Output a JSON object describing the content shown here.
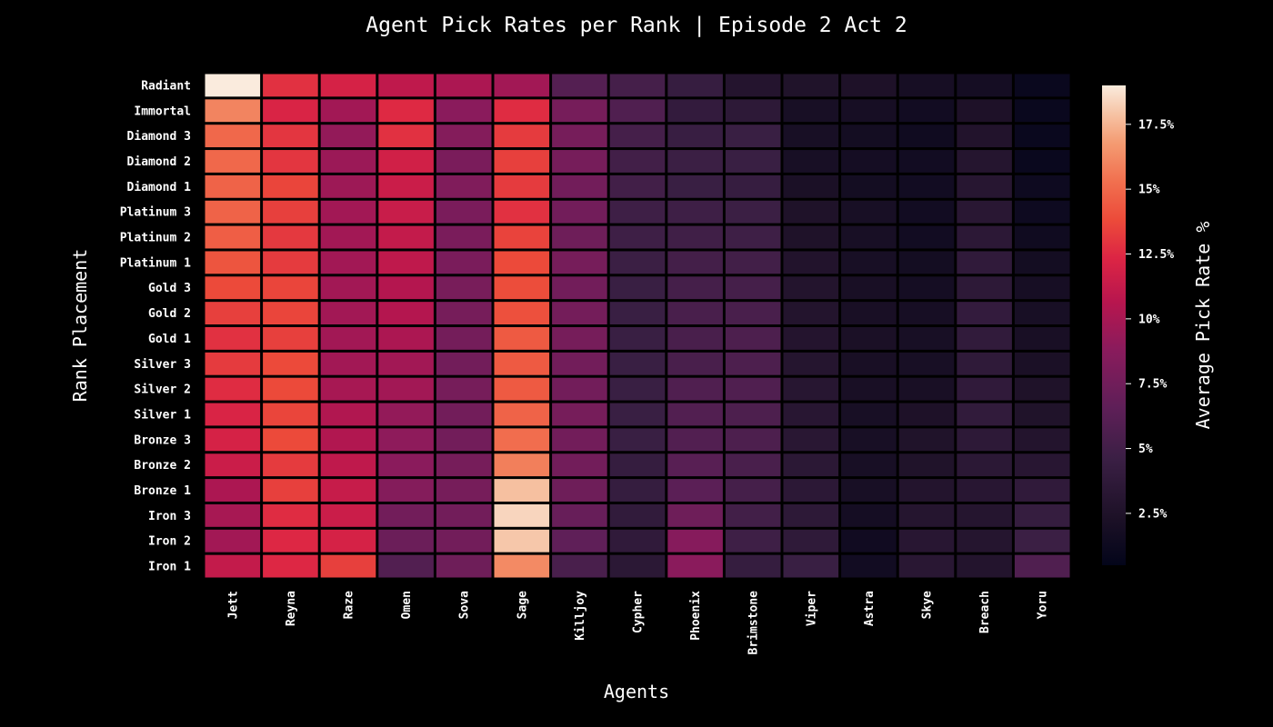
{
  "chart_data": {
    "type": "heatmap",
    "title": "Agent Pick Rates per Rank | Episode 2 Act 2",
    "xlabel": "Agents",
    "ylabel": "Rank Placement",
    "colorbar_label": "Average Pick Rate %",
    "colorbar_range": [
      0.5,
      19
    ],
    "colorbar_ticks": [
      {
        "value": 2.5,
        "label": "2.5%"
      },
      {
        "value": 5,
        "label": "5%"
      },
      {
        "value": 7.5,
        "label": "7.5%"
      },
      {
        "value": 10,
        "label": "10%"
      },
      {
        "value": 12.5,
        "label": "12.5%"
      },
      {
        "value": 15,
        "label": "15%"
      },
      {
        "value": 17.5,
        "label": "17.5%"
      }
    ],
    "colormap": "rocket",
    "x": [
      "Jett",
      "Reyna",
      "Raze",
      "Omen",
      "Sova",
      "Sage",
      "Killjoy",
      "Cypher",
      "Phoenix",
      "Brimstone",
      "Viper",
      "Astra",
      "Skye",
      "Breach",
      "Yoru"
    ],
    "y": [
      "Radiant",
      "Immortal",
      "Diamond 3",
      "Diamond 2",
      "Diamond 1",
      "Platinum 3",
      "Platinum 2",
      "Platinum 1",
      "Gold 3",
      "Gold 2",
      "Gold 1",
      "Silver 3",
      "Silver 2",
      "Silver 1",
      "Bronze 3",
      "Bronze 2",
      "Bronze 1",
      "Iron 3",
      "Iron 2",
      "Iron 1"
    ],
    "values": [
      [
        19.0,
        12.8,
        12.0,
        11.0,
        10.2,
        9.8,
        6.0,
        5.2,
        4.3,
        2.9,
        2.6,
        2.4,
        1.9,
        1.8,
        1.0
      ],
      [
        16.0,
        12.2,
        9.8,
        12.5,
        8.8,
        12.6,
        7.8,
        5.8,
        4.0,
        3.6,
        2.0,
        1.9,
        1.6,
        2.4,
        1.0
      ],
      [
        15.0,
        13.0,
        9.2,
        12.8,
        8.5,
        13.2,
        7.8,
        5.2,
        4.4,
        4.5,
        2.0,
        1.7,
        1.4,
        2.7,
        1.0
      ],
      [
        15.0,
        13.0,
        9.5,
        11.8,
        8.0,
        13.4,
        7.8,
        5.0,
        4.6,
        4.5,
        2.0,
        1.8,
        1.6,
        3.0,
        1.0
      ],
      [
        14.8,
        13.6,
        9.6,
        11.5,
        8.3,
        13.2,
        7.6,
        5.0,
        4.5,
        4.3,
        2.2,
        1.7,
        1.6,
        3.1,
        1.3
      ],
      [
        14.8,
        13.4,
        9.8,
        11.4,
        8.0,
        12.8,
        7.6,
        4.8,
        4.8,
        4.6,
        2.5,
        2.0,
        1.6,
        3.3,
        1.3
      ],
      [
        14.6,
        13.1,
        9.8,
        11.2,
        8.0,
        13.5,
        7.4,
        4.8,
        4.9,
        4.8,
        2.5,
        2.0,
        1.6,
        3.5,
        1.4
      ],
      [
        14.2,
        13.2,
        9.8,
        11.0,
        8.0,
        13.8,
        7.8,
        4.6,
        5.1,
        5.0,
        2.7,
        2.0,
        1.7,
        3.8,
        1.7
      ],
      [
        13.8,
        13.6,
        9.8,
        10.5,
        7.9,
        13.9,
        7.6,
        4.5,
        5.2,
        5.2,
        2.8,
        2.1,
        1.8,
        3.6,
        1.9
      ],
      [
        13.4,
        13.6,
        9.8,
        10.5,
        7.8,
        14.0,
        7.7,
        4.5,
        5.4,
        5.4,
        2.8,
        2.1,
        1.9,
        4.0,
        2.0
      ],
      [
        12.8,
        13.4,
        9.8,
        10.2,
        7.7,
        14.4,
        7.8,
        4.5,
        5.4,
        5.6,
        2.9,
        2.2,
        2.0,
        3.9,
        2.1
      ],
      [
        13.2,
        13.8,
        9.8,
        9.8,
        7.6,
        14.4,
        7.6,
        4.5,
        5.4,
        5.6,
        3.0,
        2.1,
        2.0,
        3.7,
        2.2
      ],
      [
        12.6,
        13.8,
        10.0,
        9.8,
        7.8,
        14.4,
        7.6,
        4.5,
        5.8,
        5.8,
        3.1,
        2.1,
        2.1,
        3.8,
        2.5
      ],
      [
        12.2,
        13.6,
        10.4,
        9.2,
        7.6,
        14.8,
        7.8,
        4.5,
        5.9,
        5.6,
        3.2,
        2.0,
        2.4,
        3.9,
        2.6
      ],
      [
        12.0,
        13.8,
        10.4,
        9.0,
        7.6,
        15.2,
        7.6,
        4.5,
        5.9,
        5.6,
        3.3,
        2.0,
        2.6,
        3.6,
        2.8
      ],
      [
        11.5,
        13.2,
        11.0,
        8.8,
        7.8,
        15.8,
        7.6,
        4.2,
        6.2,
        5.4,
        3.4,
        2.0,
        2.6,
        3.4,
        3.2
      ],
      [
        10.2,
        13.4,
        11.3,
        8.5,
        7.8,
        17.8,
        7.4,
        4.2,
        6.4,
        5.2,
        3.5,
        2.0,
        2.8,
        3.2,
        3.8
      ],
      [
        10.0,
        12.6,
        11.5,
        7.6,
        7.6,
        18.4,
        7.0,
        3.9,
        7.4,
        5.0,
        3.6,
        1.8,
        3.0,
        3.0,
        4.2
      ],
      [
        9.8,
        12.4,
        12.0,
        7.2,
        7.6,
        18.0,
        6.6,
        3.8,
        8.6,
        4.8,
        3.7,
        1.5,
        3.2,
        3.0,
        4.6
      ],
      [
        11.2,
        12.4,
        13.4,
        5.9,
        7.4,
        16.2,
        5.4,
        3.4,
        8.8,
        4.2,
        4.5,
        1.6,
        3.3,
        2.8,
        5.8
      ]
    ]
  }
}
